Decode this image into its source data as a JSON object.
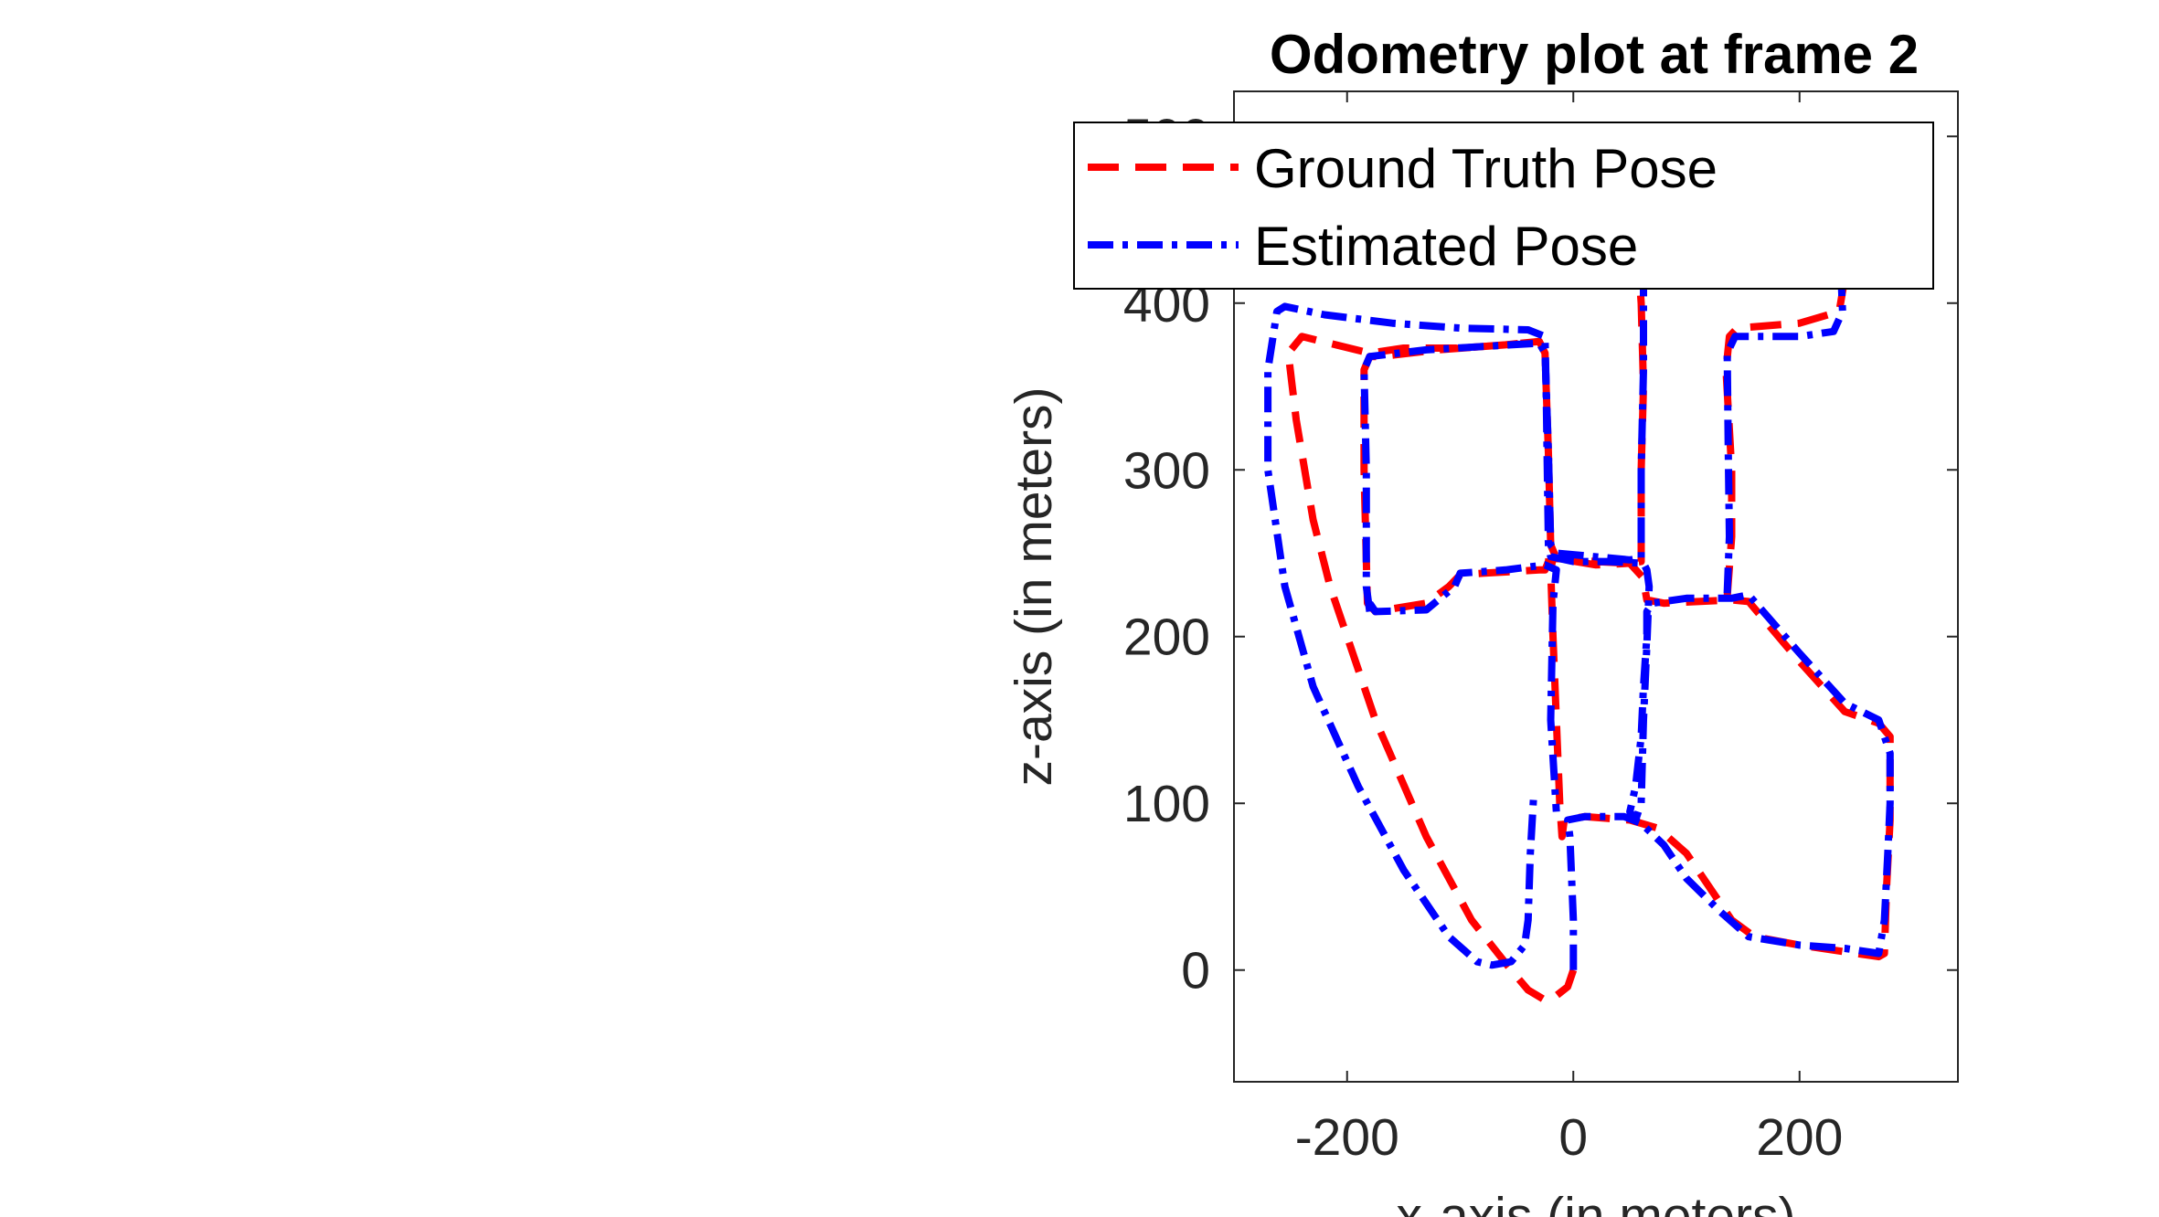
{
  "chart_data": {
    "type": "line",
    "title": "Odometry plot at frame 2",
    "xlabel": "x-axis (in meters)",
    "ylabel": "z-axis (in meters)",
    "xlim": [
      -300,
      340
    ],
    "ylim": [
      -67,
      527
    ],
    "x_ticks": [
      -200,
      0,
      200
    ],
    "y_ticks": [
      0,
      100,
      200,
      300,
      400,
      500
    ],
    "x_tick_labels": [
      "-200",
      "0",
      "200"
    ],
    "y_tick_labels": [
      "0",
      "100",
      "200",
      "300",
      "400",
      "500"
    ],
    "grid": false,
    "legend_position": "top",
    "series": [
      {
        "name": "Ground Truth Pose",
        "color": "#ff0000",
        "style": "dashed",
        "points": [
          [
            0,
            0
          ],
          [
            -5,
            -10
          ],
          [
            -20,
            -18
          ],
          [
            -25,
            -18
          ],
          [
            -40,
            -12
          ],
          [
            -55,
            0
          ],
          [
            -90,
            30
          ],
          [
            -130,
            80
          ],
          [
            -175,
            150
          ],
          [
            -215,
            230
          ],
          [
            -230,
            270
          ],
          [
            -245,
            330
          ],
          [
            -252,
            370
          ],
          [
            -240,
            380
          ],
          [
            -180,
            370
          ],
          [
            -150,
            373
          ],
          [
            -100,
            373
          ],
          [
            -60,
            375
          ],
          [
            -30,
            377
          ],
          [
            -25,
            370
          ],
          [
            -22,
            310
          ],
          [
            -20,
            255
          ],
          [
            -22,
            245
          ],
          [
            -25,
            240
          ],
          [
            -30,
            240
          ],
          [
            -80,
            238
          ],
          [
            -100,
            237
          ],
          [
            -110,
            230
          ],
          [
            -130,
            220
          ],
          [
            -175,
            215
          ],
          [
            -182,
            220
          ],
          [
            -185,
            300
          ],
          [
            -185,
            360
          ],
          [
            -180,
            368
          ],
          [
            -170,
            368
          ],
          [
            -120,
            372
          ],
          [
            -60,
            375
          ],
          [
            -30,
            377
          ],
          [
            -25,
            370
          ],
          [
            -22,
            310
          ],
          [
            -20,
            255
          ],
          [
            -15,
            247
          ],
          [
            20,
            243
          ],
          [
            50,
            244
          ],
          [
            62,
            235
          ],
          [
            63,
            230
          ],
          [
            65,
            222
          ],
          [
            80,
            220
          ],
          [
            140,
            222
          ],
          [
            155,
            221
          ],
          [
            200,
            185
          ],
          [
            240,
            155
          ],
          [
            270,
            148
          ],
          [
            280,
            140
          ],
          [
            280,
            90
          ],
          [
            277,
            50
          ],
          [
            275,
            10
          ],
          [
            270,
            8
          ],
          [
            250,
            10
          ],
          [
            200,
            15
          ],
          [
            160,
            20
          ],
          [
            140,
            30
          ],
          [
            120,
            50
          ],
          [
            100,
            70
          ],
          [
            75,
            85
          ],
          [
            50,
            90
          ],
          [
            10,
            92
          ],
          [
            -8,
            90
          ],
          [
            -10,
            80
          ],
          [
            -12,
            100
          ],
          [
            -15,
            150
          ],
          [
            -18,
            200
          ],
          [
            -20,
            240
          ],
          [
            -18,
            247
          ],
          [
            20,
            245
          ],
          [
            50,
            244
          ],
          [
            60,
            245
          ],
          [
            60,
            300
          ],
          [
            62,
            350
          ],
          [
            60,
            400
          ],
          [
            58,
            420
          ]
        ],
        "extra": [
          [
            136,
            224
          ],
          [
            140,
            260
          ],
          [
            140,
            300
          ],
          [
            135,
            360
          ],
          [
            138,
            380
          ],
          [
            145,
            385
          ],
          [
            200,
            388
          ],
          [
            235,
            395
          ],
          [
            240,
            415
          ]
        ]
      },
      {
        "name": "Estimated Pose",
        "color": "#0000ff",
        "style": "dash-dot",
        "points": [
          [
            0,
            0
          ],
          [
            0,
            30
          ],
          [
            -3,
            80
          ],
          [
            -5,
            90
          ],
          [
            10,
            92
          ],
          [
            45,
            92
          ],
          [
            60,
            88
          ],
          [
            80,
            75
          ],
          [
            100,
            55
          ],
          [
            130,
            35
          ],
          [
            155,
            20
          ],
          [
            200,
            15
          ],
          [
            240,
            13
          ],
          [
            270,
            10
          ],
          [
            275,
            30
          ],
          [
            278,
            70
          ],
          [
            280,
            100
          ],
          [
            280,
            130
          ],
          [
            270,
            150
          ],
          [
            240,
            160
          ],
          [
            200,
            190
          ],
          [
            155,
            225
          ],
          [
            140,
            223
          ],
          [
            100,
            223
          ],
          [
            70,
            220
          ],
          [
            65,
            215
          ],
          [
            65,
            200
          ],
          [
            62,
            170
          ],
          [
            60,
            140
          ],
          [
            55,
            110
          ],
          [
            50,
            95
          ],
          [
            55,
            90
          ],
          [
            60,
            100
          ],
          [
            62,
            150
          ],
          [
            65,
            195
          ],
          [
            67,
            230
          ],
          [
            65,
            240
          ],
          [
            62,
            244
          ],
          [
            30,
            245
          ],
          [
            0,
            245
          ],
          [
            -20,
            248
          ],
          [
            -22,
            255
          ],
          [
            -23,
            300
          ],
          [
            -24,
            350
          ],
          [
            -25,
            380
          ],
          [
            -40,
            384
          ],
          [
            -100,
            385
          ],
          [
            -160,
            388
          ],
          [
            -220,
            393
          ],
          [
            -255,
            398
          ],
          [
            -262,
            395
          ],
          [
            -270,
            360
          ],
          [
            -270,
            300
          ],
          [
            -255,
            230
          ],
          [
            -230,
            170
          ],
          [
            -190,
            110
          ],
          [
            -150,
            60
          ],
          [
            -110,
            20
          ],
          [
            -85,
            5
          ],
          [
            -72,
            3
          ],
          [
            -55,
            5
          ],
          [
            -43,
            15
          ],
          [
            -40,
            30
          ],
          [
            -38,
            70
          ],
          [
            -35,
            105
          ]
        ],
        "extra": [
          [
            -180,
            215
          ],
          [
            -183,
            230
          ],
          [
            -183,
            300
          ],
          [
            -185,
            360
          ],
          [
            -180,
            368
          ],
          [
            -130,
            372
          ],
          [
            -30,
            376
          ],
          [
            -25,
            370
          ],
          [
            -22,
            310
          ],
          [
            -20,
            255
          ],
          [
            -14,
            250
          ],
          [
            50,
            246
          ],
          [
            60,
            247
          ],
          [
            60,
            300
          ],
          [
            62,
            360
          ],
          [
            62,
            410
          ],
          [
            60,
            420
          ]
        ],
        "extra2": [
          [
            136,
            226
          ],
          [
            138,
            260
          ],
          [
            137,
            310
          ],
          [
            136,
            370
          ],
          [
            143,
            380
          ],
          [
            200,
            380
          ],
          [
            230,
            383
          ],
          [
            238,
            395
          ],
          [
            237,
            412
          ]
        ],
        "extra3": [
          [
            -180,
            220
          ],
          [
            -175,
            215
          ],
          [
            -130,
            216
          ],
          [
            -105,
            230
          ],
          [
            -100,
            238
          ],
          [
            -60,
            240
          ],
          [
            -25,
            243
          ],
          [
            -15,
            240
          ],
          [
            -18,
            220
          ],
          [
            -20,
            150
          ],
          [
            -15,
            95
          ]
        ]
      }
    ]
  }
}
